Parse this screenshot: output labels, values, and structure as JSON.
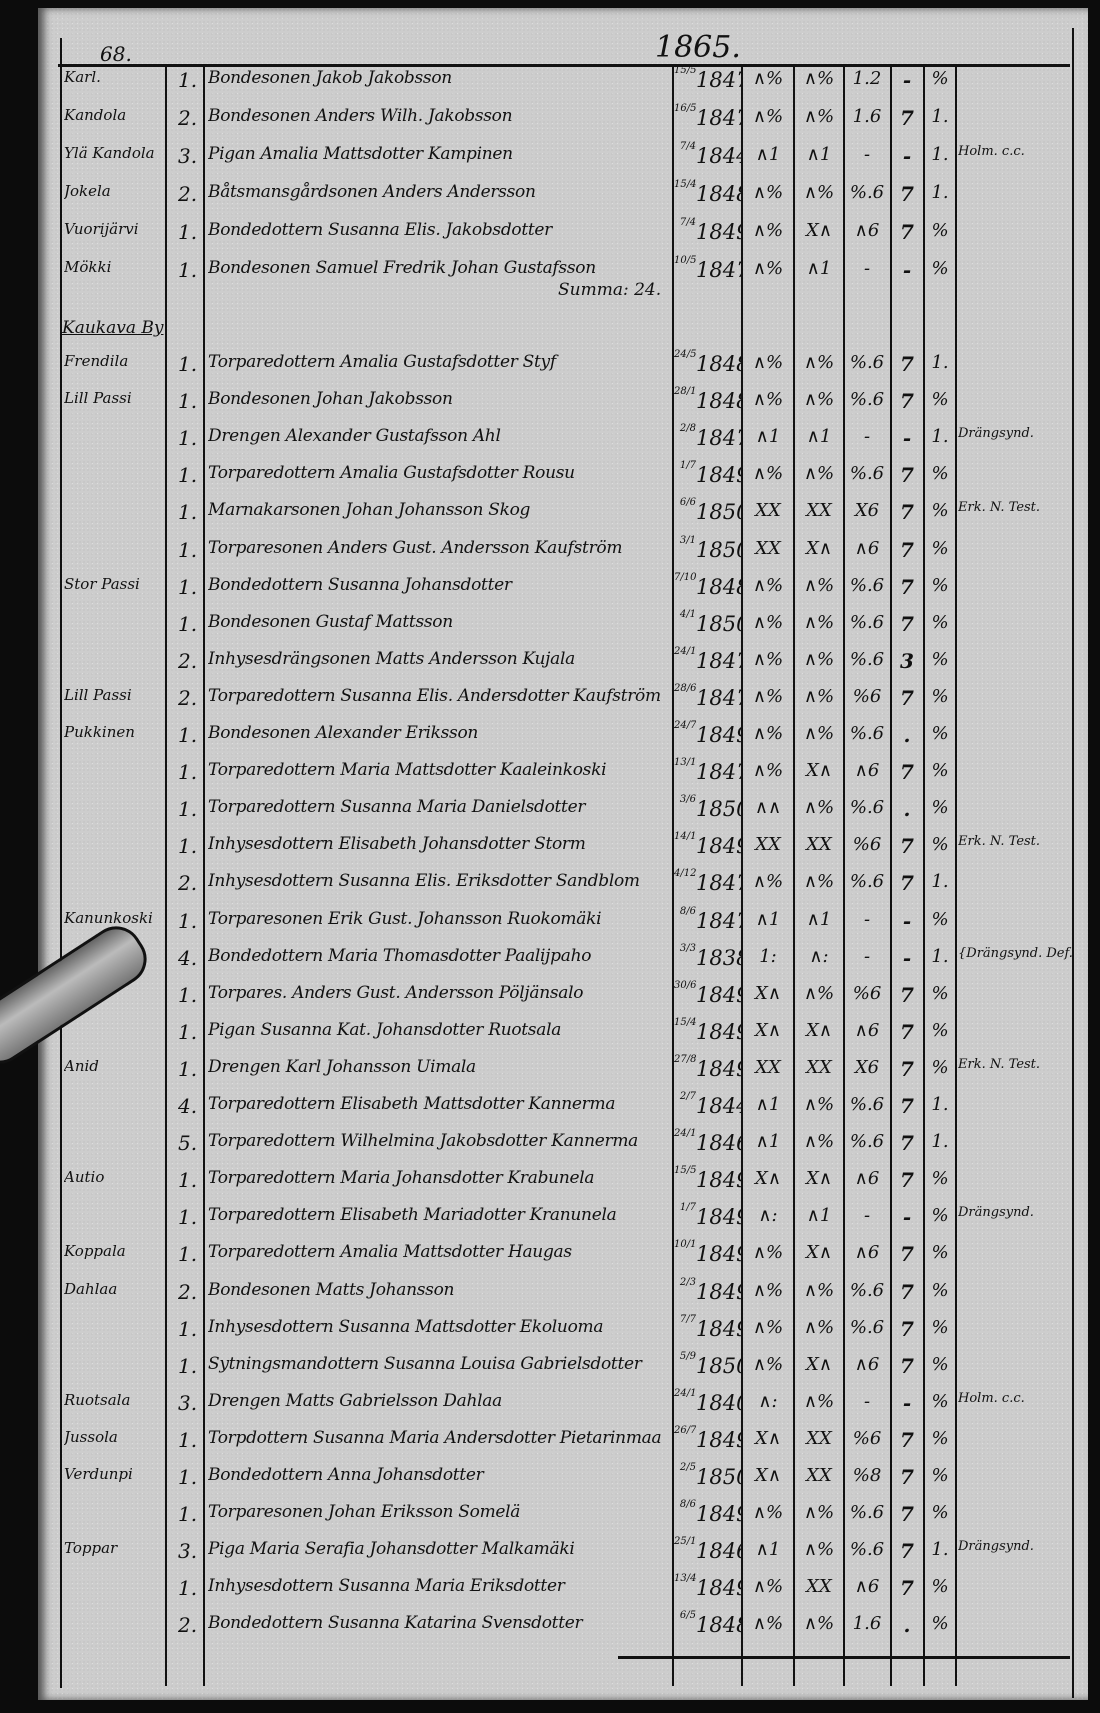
{
  "header": {
    "page_number": "68.",
    "year": "1865."
  },
  "block1": [
    {
      "place": "Karl.",
      "num": "1.",
      "name": "Bondesonen Jakob Jakobsson",
      "day": "15/5",
      "year": "1847",
      "a": "∧%",
      "b": "∧%",
      "c": "1.2",
      "d": "-",
      "e": "%",
      "remark": ""
    },
    {
      "place": "Kandola",
      "num": "2.",
      "name": "Bondesonen Anders Wilh. Jakobsson",
      "day": "16/5",
      "year": "1847",
      "a": "∧%",
      "b": "∧%",
      "c": "1.6",
      "d": "7",
      "e": "1.",
      "remark": ""
    },
    {
      "place": "Ylä Kandola",
      "num": "3.",
      "name": "Pigan Amalia Mattsdotter Kampinen",
      "day": "7/4",
      "year": "1844",
      "a": "∧1",
      "b": "∧1",
      "c": "-",
      "d": "-",
      "e": "1.",
      "remark": "Holm. c.c."
    },
    {
      "place": "Jokela",
      "num": "2.",
      "name": "Båtsmansgårdsonen Anders Andersson",
      "day": "15/4",
      "year": "1848",
      "a": "∧%",
      "b": "∧%",
      "c": "%.6",
      "d": "7",
      "e": "1.",
      "remark": ""
    },
    {
      "place": "Vuorijärvi",
      "num": "1.",
      "name": "Bondedottern Susanna Elis. Jakobsdotter",
      "day": "7/4",
      "year": "1849",
      "a": "∧%",
      "b": "X∧",
      "c": "∧6",
      "d": "7",
      "e": "%",
      "remark": ""
    },
    {
      "place": "Mökki",
      "num": "1.",
      "name": "Bondesonen Samuel Fredrik Johan Gustafsson",
      "day": "10/5",
      "year": "1847",
      "a": "∧%",
      "b": "∧1",
      "c": "-",
      "d": "-",
      "e": "%",
      "remark": ""
    }
  ],
  "summa": "Summa: 24.",
  "village": "Kaukava By",
  "block2": [
    {
      "place": "Frendila",
      "num": "1.",
      "name": "Torparedottern Amalia Gustafsdotter Styf",
      "day": "24/5",
      "year": "1848",
      "a": "∧%",
      "b": "∧%",
      "c": "%.6",
      "d": "7",
      "e": "1.",
      "remark": ""
    },
    {
      "place": "Lill Passi",
      "num": "1.",
      "name": "Bondesonen Johan Jakobsson",
      "day": "28/10",
      "year": "1848",
      "a": "∧%",
      "b": "∧%",
      "c": "%.6",
      "d": "7",
      "e": "%",
      "remark": ""
    },
    {
      "place": "",
      "num": "1.",
      "name": "Drengen Alexander Gustafsson Ahl",
      "day": "2/8",
      "year": "1847",
      "a": "∧1",
      "b": "∧1",
      "c": "-",
      "d": "-",
      "e": "1.",
      "remark": "Drängsynd."
    },
    {
      "place": "",
      "num": "1.",
      "name": "Torparedottern Amalia Gustafsdotter Rousu",
      "day": "1/7",
      "year": "1849",
      "a": "∧%",
      "b": "∧%",
      "c": "%.6",
      "d": "7",
      "e": "%",
      "remark": ""
    },
    {
      "place": "",
      "num": "1.",
      "name": "Marnakarsonen Johan Johansson Skog",
      "day": "6/6",
      "year": "1850",
      "a": "XX",
      "b": "XX",
      "c": "X6",
      "d": "7",
      "e": "%",
      "remark": "Erk. N. Test."
    },
    {
      "place": "",
      "num": "1.",
      "name": "Torparesonen Anders Gust. Andersson Kaufström",
      "day": "3/1",
      "year": "1850",
      "a": "XX",
      "b": "X∧",
      "c": "∧6",
      "d": "7",
      "e": "%",
      "remark": ""
    },
    {
      "place": "Stor Passi",
      "num": "1.",
      "name": "Bondedottern Susanna Johansdotter",
      "day": "7/10",
      "year": "1848",
      "a": "∧%",
      "b": "∧%",
      "c": "%.6",
      "d": "7",
      "e": "%",
      "remark": ""
    },
    {
      "place": "",
      "num": "1.",
      "name": "Bondesonen Gustaf Mattsson",
      "day": "4/1",
      "year": "1850",
      "a": "∧%",
      "b": "∧%",
      "c": "%.6",
      "d": "7",
      "e": "%",
      "remark": ""
    },
    {
      "place": "",
      "num": "2.",
      "name": "Inhysesdrängsonen Matts Andersson Kujala",
      "day": "24/12",
      "year": "1847",
      "a": "∧%",
      "b": "∧%",
      "c": "%.6",
      "d": "3",
      "e": "%",
      "remark": ""
    },
    {
      "place": "Lill Passi",
      "num": "2.",
      "name": "Torparedottern Susanna Elis. Andersdotter Kaufström",
      "day": "28/6",
      "year": "1847",
      "a": "∧%",
      "b": "∧%",
      "c": "%6",
      "d": "7",
      "e": "%",
      "remark": ""
    },
    {
      "place": "Pukkinen",
      "num": "1.",
      "name": "Bondesonen Alexander Eriksson",
      "day": "24/7",
      "year": "1849",
      "a": "∧%",
      "b": "∧%",
      "c": "%.6",
      "d": ".",
      "e": "%",
      "remark": ""
    },
    {
      "place": "",
      "num": "1.",
      "name": "Torparedottern Maria Mattsdotter Kaaleinkoski",
      "day": "13/11",
      "year": "1847",
      "a": "∧%",
      "b": "X∧",
      "c": "∧6",
      "d": "7",
      "e": "%",
      "remark": ""
    },
    {
      "place": "",
      "num": "1.",
      "name": "Torparedottern Susanna Maria Danielsdotter",
      "day": "3/6",
      "year": "1850",
      "a": "∧∧",
      "b": "∧%",
      "c": "%.6",
      "d": ".",
      "e": "%",
      "remark": ""
    },
    {
      "place": "",
      "num": "1.",
      "name": "Inhysesdottern Elisabeth Johansdotter Storm",
      "day": "14/11",
      "year": "1849",
      "a": "XX",
      "b": "XX",
      "c": "%6",
      "d": "7",
      "e": "%",
      "remark": "Erk. N. Test."
    },
    {
      "place": "",
      "num": "2.",
      "name": "Inhysesdottern Susanna Elis. Eriksdotter Sandblom",
      "day": "4/12",
      "year": "1847",
      "a": "∧%",
      "b": "∧%",
      "c": "%.6",
      "d": "7",
      "e": "1.",
      "remark": ""
    },
    {
      "place": "Kanunkoski",
      "num": "1.",
      "name": "Torparesonen Erik Gust. Johansson Ruokomäki",
      "day": "8/6",
      "year": "1847",
      "a": "∧1",
      "b": "∧1",
      "c": "-",
      "d": "-",
      "e": "%",
      "remark": ""
    },
    {
      "place": "",
      "num": "4.",
      "name": "Bondedottern Maria Thomasdotter Paalijpaho",
      "day": "3/3",
      "year": "1838",
      "a": "1:",
      "b": "∧:",
      "c": "-",
      "d": "-",
      "e": "1.",
      "remark": "{Drängsynd. Def."
    },
    {
      "place": "",
      "num": "1.",
      "name": "Torpares. Anders Gust. Andersson Pöljänsalo",
      "day": "30/6",
      "year": "1849",
      "a": "X∧",
      "b": "∧%",
      "c": "%6",
      "d": "7",
      "e": "%",
      "remark": ""
    },
    {
      "place": "",
      "num": "1.",
      "name": "Pigan Susanna Kat. Johansdotter Ruotsala",
      "day": "15/4",
      "year": "1849",
      "a": "X∧",
      "b": "X∧",
      "c": "∧6",
      "d": "7",
      "e": "%",
      "remark": ""
    },
    {
      "place": "Anid",
      "num": "1.",
      "name": "Drengen Karl Johansson Uimala",
      "day": "27/8",
      "year": "1849",
      "a": "XX",
      "b": "XX",
      "c": "X6",
      "d": "7",
      "e": "%",
      "remark": "Erk. N. Test."
    },
    {
      "place": "",
      "num": "4.",
      "name": "Torparedottern Elisabeth Mattsdotter Kannerma",
      "day": "2/7",
      "year": "1844",
      "a": "∧1",
      "b": "∧%",
      "c": "%.6",
      "d": "7",
      "e": "1.",
      "remark": ""
    },
    {
      "place": "",
      "num": "5.",
      "name": "Torparedottern Wilhelmina Jakobsdotter Kannerma",
      "day": "24/11",
      "year": "1846",
      "a": "∧1",
      "b": "∧%",
      "c": "%.6",
      "d": "7",
      "e": "1.",
      "remark": ""
    },
    {
      "place": "Autio",
      "num": "1.",
      "name": "Torparedottern Maria Johansdotter Krabunela",
      "day": "15/5",
      "year": "1849",
      "a": "X∧",
      "b": "X∧",
      "c": "∧6",
      "d": "7",
      "e": "%",
      "remark": ""
    },
    {
      "place": "",
      "num": "1.",
      "name": "Torparedottern Elisabeth Mariadotter Kranunela",
      "day": "1/7",
      "year": "1849",
      "a": "∧:",
      "b": "∧1",
      "c": "-",
      "d": "-",
      "e": "%",
      "remark": "Drängsynd."
    },
    {
      "place": "Koppala",
      "num": "1.",
      "name": "Torparedottern Amalia Mattsdotter Haugas",
      "day": "10/10",
      "year": "1849",
      "a": "∧%",
      "b": "X∧",
      "c": "∧6",
      "d": "7",
      "e": "%",
      "remark": ""
    },
    {
      "place": "Dahlaa",
      "num": "2.",
      "name": "Bondesonen Matts Johansson",
      "day": "2/3",
      "year": "1849",
      "a": "∧%",
      "b": "∧%",
      "c": "%.6",
      "d": "7",
      "e": "%",
      "remark": ""
    },
    {
      "place": "",
      "num": "1.",
      "name": "Inhysesdottern Susanna Mattsdotter Ekoluoma",
      "day": "7/7",
      "year": "1849",
      "a": "∧%",
      "b": "∧%",
      "c": "%.6",
      "d": "7",
      "e": "%",
      "remark": ""
    },
    {
      "place": "",
      "num": "1.",
      "name": "Sytningsmandottern Susanna Louisa Gabrielsdotter",
      "day": "5/9",
      "year": "1850",
      "a": "∧%",
      "b": "X∧",
      "c": "∧6",
      "d": "7",
      "e": "%",
      "remark": ""
    },
    {
      "place": "Ruotsala",
      "num": "3.",
      "name": "Drengen Matts Gabrielsson Dahlaa",
      "day": "24/10",
      "year": "1840",
      "a": "∧:",
      "b": "∧%",
      "c": "-",
      "d": "-",
      "e": "%",
      "remark": "Holm. c.c."
    },
    {
      "place": "Jussola",
      "num": "1.",
      "name": "Torpdottern Susanna Maria Andersdotter Pietarinmaa",
      "day": "26/7",
      "year": "1849",
      "a": "X∧",
      "b": "XX",
      "c": "%6",
      "d": "7",
      "e": "%",
      "remark": ""
    },
    {
      "place": "Verdunpi",
      "num": "1.",
      "name": "Bondedottern Anna Johansdotter",
      "day": "2/5",
      "year": "1850",
      "a": "X∧",
      "b": "XX",
      "c": "%8",
      "d": "7",
      "e": "%",
      "remark": ""
    },
    {
      "place": "",
      "num": "1.",
      "name": "Torparesonen Johan Eriksson Somelä",
      "day": "8/6",
      "year": "1849",
      "a": "∧%",
      "b": "∧%",
      "c": "%.6",
      "d": "7",
      "e": "%",
      "remark": ""
    },
    {
      "place": "Toppar",
      "num": "3.",
      "name": "Piga Maria Serafia Johansdotter Malkamäki",
      "day": "25/10",
      "year": "1846",
      "a": "∧1",
      "b": "∧%",
      "c": "%.6",
      "d": "7",
      "e": "1.",
      "remark": "Drängsynd."
    },
    {
      "place": "",
      "num": "1.",
      "name": "Inhysesdottern Susanna Maria Eriksdotter",
      "day": "13/4",
      "year": "1849",
      "a": "∧%",
      "b": "XX",
      "c": "∧6",
      "d": "7",
      "e": "%",
      "remark": ""
    },
    {
      "place": "",
      "num": "2.",
      "name": "Bondedottern Susanna Katarina Svensdotter",
      "day": "6/5",
      "year": "1848",
      "a": "∧%",
      "b": "∧%",
      "c": "1.6",
      "d": ".",
      "e": "%",
      "remark": ""
    }
  ]
}
